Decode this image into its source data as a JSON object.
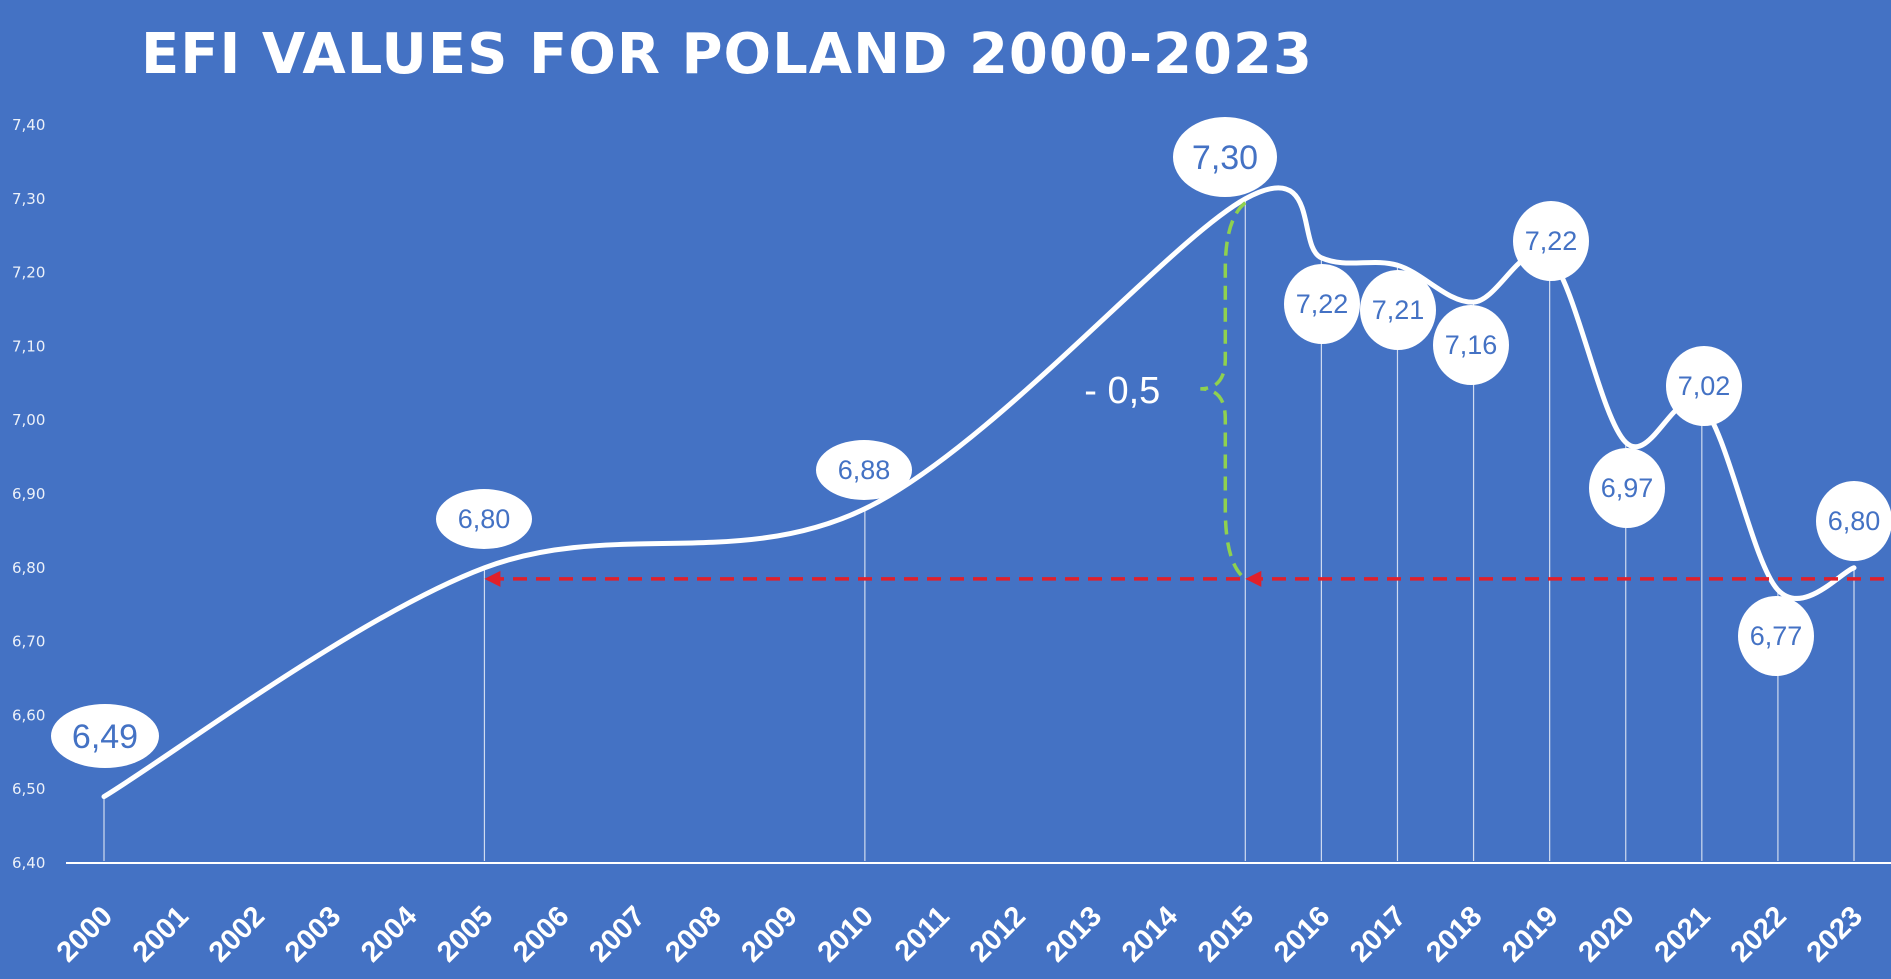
{
  "chart_data": {
    "type": "line",
    "title": "EFI VALUES FOR POLAND 2000-2023",
    "xlabel": "",
    "ylabel": "",
    "x": [
      "2000",
      "2001",
      "2002",
      "2003",
      "2004",
      "2005",
      "2006",
      "2007",
      "2008",
      "2009",
      "2010",
      "2011",
      "2012",
      "2013",
      "2014",
      "2015",
      "2016",
      "2017",
      "2018",
      "2019",
      "2020",
      "2021",
      "2022",
      "2023"
    ],
    "ylim": [
      6.4,
      7.4
    ],
    "yticks": [
      "6,40",
      "6,50",
      "6,60",
      "6,70",
      "6,80",
      "6,90",
      "7,00",
      "7,10",
      "7,20",
      "7,30",
      "7,40"
    ],
    "series": [
      {
        "name": "EFI",
        "points": [
          {
            "year": 2000,
            "value": 6.49,
            "label": "6,49"
          },
          {
            "year": 2005,
            "value": 6.8,
            "label": "6,80"
          },
          {
            "year": 2010,
            "value": 6.88,
            "label": "6,88"
          },
          {
            "year": 2015,
            "value": 7.3,
            "label": "7,30"
          },
          {
            "year": 2016,
            "value": 7.22,
            "label": "7,22"
          },
          {
            "year": 2017,
            "value": 7.21,
            "label": "7,21"
          },
          {
            "year": 2018,
            "value": 7.16,
            "label": "7,16"
          },
          {
            "year": 2019,
            "value": 7.22,
            "label": "7,22"
          },
          {
            "year": 2020,
            "value": 6.97,
            "label": "6,97"
          },
          {
            "year": 2021,
            "value": 7.02,
            "label": "7,02"
          },
          {
            "year": 2022,
            "value": 6.77,
            "label": "6,77"
          },
          {
            "year": 2023,
            "value": 6.8,
            "label": "6,80"
          }
        ]
      }
    ],
    "annotations": {
      "reference_value": 6.785,
      "reference_from": 2023,
      "arrows_at": [
        2005,
        2015
      ],
      "drop_label": "- 0,5",
      "drop_from": 7.3,
      "drop_to": 6.785,
      "drop_year": 2015
    },
    "grid": false
  },
  "colors": {
    "background": "#4472c4",
    "line": "#ffffff",
    "reference": "#e0202a",
    "brace": "#8fd14f",
    "label_text": "#4472c4"
  }
}
